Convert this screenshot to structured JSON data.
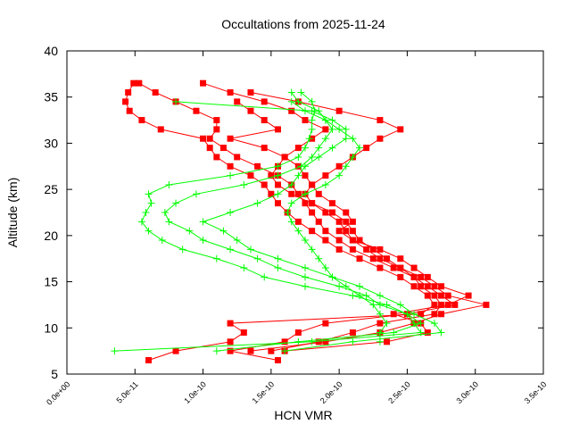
{
  "chart_data": {
    "type": "line",
    "title": "Occultations from 2025-11-24",
    "xlabel": "HCN VMR",
    "ylabel": "Altitude (km)",
    "xlim": [
      0,
      3.5e-10
    ],
    "ylim": [
      5,
      40
    ],
    "x_ticks": [
      0,
      5e-11,
      1e-10,
      1.5e-10,
      2e-10,
      2.5e-10,
      3e-10,
      3.5e-10
    ],
    "x_tick_labels": [
      "0.0e+00",
      "5.0e-11",
      "1.0e-10",
      "1.5e-10",
      "2.0e-10",
      "2.5e-10",
      "3.0e-10",
      "3.5e-10"
    ],
    "y_ticks": [
      5,
      10,
      15,
      20,
      25,
      30,
      35,
      40
    ],
    "y_tick_labels": [
      "5",
      "10",
      "15",
      "20",
      "25",
      "30",
      "35",
      "40"
    ],
    "grid": false,
    "legend": "none",
    "series": [
      {
        "color": "#ff0000",
        "marker": "square",
        "profiles": [
          {
            "altitude": [
              36.5,
              35.5,
              34.5,
              33.5,
              32.5,
              31.5,
              30.5,
              29.5,
              28.5,
              27.5,
              26.5,
              25.5,
              24.5,
              23.5,
              22.5,
              21.5,
              20.5,
              19.5,
              18.5,
              17.5,
              16.5,
              15.5,
              14.5,
              13.5,
              12.5,
              11.5,
              10.5,
              9.5,
              8.5,
              7.5,
              6.5
            ],
            "vmr": [
              4.9e-11,
              4.5e-11,
              4.3e-11,
              4.6e-11,
              5.5e-11,
              6.9e-11,
              1e-10,
              1.05e-10,
              1.1e-10,
              1.2e-10,
              1.35e-10,
              1.45e-10,
              1.5e-10,
              1.55e-10,
              1.62e-10,
              1.7e-10,
              1.8e-10,
              1.9e-10,
              2e-10,
              2.15e-10,
              2.3e-10,
              2.45e-10,
              2.55e-10,
              2.65e-10,
              2.7e-10,
              2.6e-10,
              1.2e-10,
              1.3e-10,
              1.2e-10,
              8e-11,
              6e-11
            ]
          },
          {
            "altitude": [
              36.5,
              35.5,
              34.5,
              33.5,
              32.5,
              31.5,
              30.5,
              29.5,
              28.5,
              27.5,
              26.5,
              25.5,
              24.5,
              23.5,
              22.5,
              21.5,
              20.5,
              19.5,
              18.5,
              17.5,
              16.5,
              15.5,
              14.5,
              13.5,
              12.5,
              11.5,
              10.5,
              9.5,
              8.5,
              7.5,
              6.5
            ],
            "vmr": [
              5.3e-11,
              6.5e-11,
              8e-11,
              9.5e-11,
              1.1e-10,
              1.1e-10,
              1.05e-10,
              1.15e-10,
              1.25e-10,
              1.4e-10,
              1.55e-10,
              1.65e-10,
              1.7e-10,
              1.75e-10,
              1.8e-10,
              1.85e-10,
              1.9e-10,
              2e-10,
              2.1e-10,
              2.25e-10,
              2.4e-10,
              2.55e-10,
              2.65e-10,
              2.75e-10,
              2.85e-10,
              2.5e-10,
              1.9e-10,
              1.7e-10,
              1.6e-10,
              1.2e-10,
              1.55e-10
            ]
          },
          {
            "altitude": [
              36.5,
              35.5,
              34.5,
              33.5,
              32.5,
              31.5,
              30.5,
              29.5,
              28.5,
              27.5,
              26.5,
              25.5,
              24.5,
              23.5,
              22.5,
              21.5,
              20.5,
              19.5,
              18.5,
              17.5,
              16.5,
              15.5,
              14.5,
              13.5,
              12.5,
              11.5,
              10.5,
              9.5,
              8.5,
              7.5
            ],
            "vmr": [
              1e-10,
              1.2e-10,
              1.45e-10,
              1.65e-10,
              1.75e-10,
              1.9e-10,
              1.8e-10,
              1.7e-10,
              1.6e-10,
              1.55e-10,
              1.5e-10,
              1.55e-10,
              1.65e-10,
              1.8e-10,
              1.95e-10,
              2.05e-10,
              2.1e-10,
              2.15e-10,
              2.25e-10,
              2.35e-10,
              2.45e-10,
              2.55e-10,
              2.6e-10,
              2.7e-10,
              2.75e-10,
              2.7e-10,
              2.3e-10,
              2.1e-10,
              1.85e-10,
              1.5e-10
            ]
          },
          {
            "altitude": [
              35.5,
              34.5,
              33.5,
              32.5,
              31.5,
              30.5,
              29.5,
              28.5,
              27.5,
              26.5,
              25.5,
              24.5,
              23.5,
              22.5,
              21.5,
              20.5,
              19.5,
              18.5,
              17.5,
              16.5,
              15.5,
              14.5,
              13.5,
              12.5,
              11.5,
              10.5,
              9.5,
              8.5,
              7.5
            ],
            "vmr": [
              1.35e-10,
              1.7e-10,
              2e-10,
              2.3e-10,
              2.45e-10,
              2.3e-10,
              2.2e-10,
              2.1e-10,
              2e-10,
              1.9e-10,
              1.8e-10,
              1.75e-10,
              1.8e-10,
              1.9e-10,
              2e-10,
              2.05e-10,
              2.1e-10,
              2.2e-10,
              2.3e-10,
              2.45e-10,
              2.6e-10,
              2.7e-10,
              2.8e-10,
              3.08e-10,
              2.75e-10,
              2.55e-10,
              2.3e-10,
              1.9e-10,
              1.35e-10
            ]
          },
          {
            "altitude": [
              34.5,
              33.5,
              32.5,
              31.5,
              30.5,
              29.5,
              28.5,
              27.5,
              26.5,
              25.5,
              24.5,
              23.5,
              22.5,
              21.5,
              20.5,
              19.5,
              18.5,
              17.5,
              16.5,
              15.5,
              14.5,
              13.5,
              12.5,
              11.5,
              10.5,
              9.5,
              8.5,
              7.5
            ],
            "vmr": [
              1.25e-10,
              1.35e-10,
              1.45e-10,
              1.55e-10,
              1.2e-10,
              1.45e-10,
              1.6e-10,
              1.7e-10,
              1.75e-10,
              1.8e-10,
              1.85e-10,
              1.95e-10,
              2.05e-10,
              2.1e-10,
              2e-10,
              2.1e-10,
              2.3e-10,
              2.45e-10,
              2.55e-10,
              2.65e-10,
              2.75e-10,
              2.95e-10,
              2.8e-10,
              2.4e-10,
              2.6e-10,
              2.65e-10,
              2.35e-10,
              1.6e-10
            ]
          }
        ]
      },
      {
        "color": "#00ff00",
        "marker": "plus",
        "profiles": [
          {
            "altitude": [
              7.5,
              8.5,
              9.5,
              10.5,
              11.5,
              12.5,
              13.5,
              14.5,
              15.5,
              16.5,
              17.5,
              18.5,
              19.5,
              20.5,
              21.5,
              22.5,
              23.5,
              24.5,
              25.5,
              26.5,
              27.5,
              28.5,
              29.5,
              30.5,
              31.5,
              32.5,
              33.5,
              34.5,
              35.5
            ],
            "vmr": [
              3.5e-11,
              1.8e-10,
              2.6e-10,
              2.55e-10,
              2.5e-10,
              2.35e-10,
              2.1e-10,
              1.75e-10,
              1.45e-10,
              1.3e-10,
              1.1e-10,
              8.5e-11,
              7e-11,
              6e-11,
              5.5e-11,
              5.8e-11,
              6.2e-11,
              6e-11,
              7.5e-11,
              1.2e-10,
              1.55e-10,
              1.7e-10,
              1.75e-10,
              1.78e-10,
              1.8e-10,
              1.8e-10,
              1.82e-10,
              1.8e-10,
              1.72e-10
            ]
          },
          {
            "altitude": [
              7.5,
              8.5,
              9.5,
              10.5,
              11.5,
              12.5,
              13.5,
              14.5,
              15.5,
              16.5,
              17.5,
              18.5,
              19.5,
              20.5,
              21.5,
              22.5,
              23.5,
              24.5,
              25.5,
              26.5,
              27.5,
              28.5,
              29.5,
              30.5,
              31.5,
              32.5,
              33.5,
              34.5,
              35.5
            ],
            "vmr": [
              1.1e-10,
              1.7e-10,
              2.4e-10,
              2.6e-10,
              2.5e-10,
              2.3e-10,
              2.2e-10,
              2e-10,
              1.75e-10,
              1.55e-10,
              1.4e-10,
              1.2e-10,
              1e-10,
              9e-11,
              7.5e-11,
              7.2e-11,
              8e-11,
              9.5e-11,
              1.3e-10,
              1.55e-10,
              1.72e-10,
              1.8e-10,
              1.85e-10,
              1.9e-10,
              1.95e-10,
              1.9e-10,
              1.85e-10,
              1.7e-10,
              1.65e-10
            ]
          },
          {
            "altitude": [
              7.5,
              8.5,
              9.5,
              10.5,
              11.5,
              12.5,
              13.5,
              14.5,
              15.5,
              16.5,
              17.5,
              18.5,
              19.5,
              20.5,
              21.5,
              22.5,
              23.5,
              24.5,
              25.5,
              26.5,
              27.5,
              28.5,
              29.5,
              30.5,
              31.5,
              32.5,
              33.5,
              34.5
            ],
            "vmr": [
              1.6e-10,
              2.1e-10,
              2.75e-10,
              2.7e-10,
              2.55e-10,
              2.45e-10,
              2.3e-10,
              2.15e-10,
              1.95e-10,
              1.75e-10,
              1.55e-10,
              1.35e-10,
              1.25e-10,
              1.15e-10,
              1e-10,
              1.2e-10,
              1.4e-10,
              1.55e-10,
              1.65e-10,
              1.7e-10,
              1.75e-10,
              1.85e-10,
              1.95e-10,
              2.05e-10,
              2.05e-10,
              1.95e-10,
              1.8e-10,
              8e-11
            ]
          },
          {
            "altitude": [
              8.5,
              9.5,
              10.5,
              11.5,
              12.5,
              13.5,
              14.5,
              15.5,
              16.5,
              17.5,
              18.5,
              19.5,
              20.5,
              21.5,
              22.5,
              23.5,
              24.5,
              25.5,
              26.5,
              27.5,
              28.5,
              29.5,
              30.5,
              31.5,
              32.5,
              33.5,
              34.5
            ],
            "vmr": [
              2.3e-10,
              2.3e-10,
              2.35e-10,
              2.3e-10,
              2.25e-10,
              2.15e-10,
              2.05e-10,
              1.95e-10,
              1.9e-10,
              1.85e-10,
              1.8e-10,
              1.75e-10,
              1.7e-10,
              1.65e-10,
              1.62e-10,
              1.65e-10,
              1.75e-10,
              1.9e-10,
              2e-10,
              2.05e-10,
              2.1e-10,
              2.15e-10,
              2.1e-10,
              2e-10,
              1.9e-10,
              1.75e-10,
              1.65e-10
            ]
          }
        ]
      }
    ]
  }
}
